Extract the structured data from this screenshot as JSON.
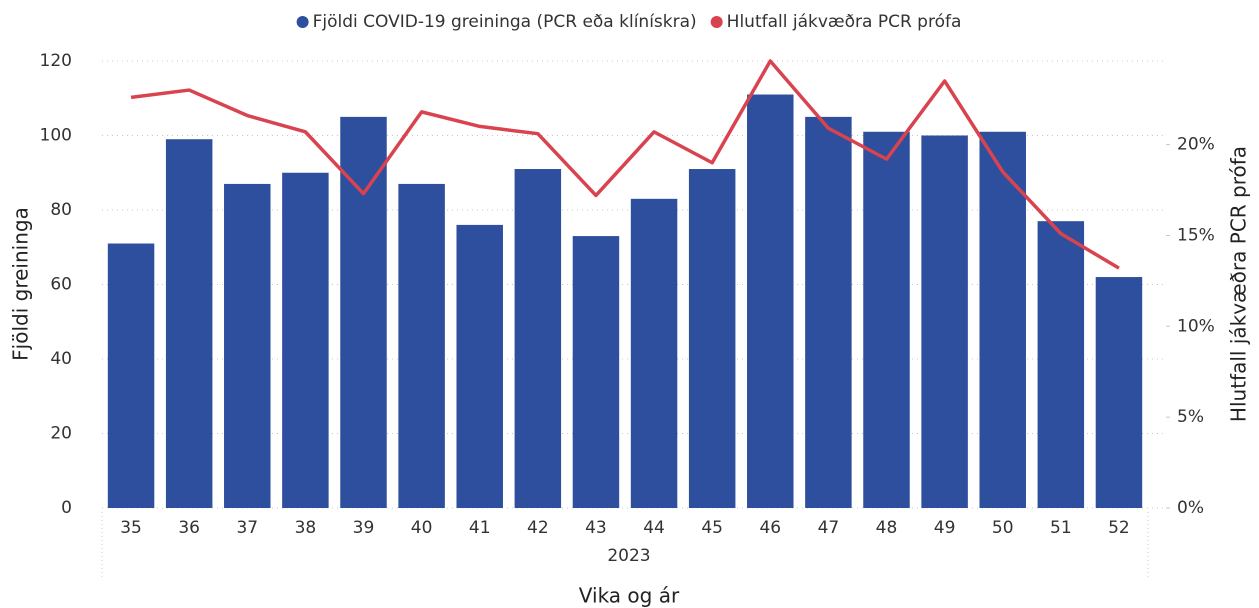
{
  "chart_data": {
    "type": "bar_line",
    "series": [
      {
        "name": "Fjöldi COVID-19 greininga (PCR eða klínískra)",
        "color": "#2e4f9e",
        "values": [
          71,
          99,
          87,
          90,
          105,
          87,
          76,
          91,
          73,
          83,
          91,
          111,
          105,
          101,
          100,
          101,
          77,
          62
        ]
      },
      {
        "name": "Hlutfall jákvæðra PCR prófa",
        "color": "#d9434f",
        "axis": "y2",
        "values": [
          22.6,
          23.0,
          21.6,
          20.7,
          17.3,
          21.8,
          21.0,
          20.6,
          17.2,
          20.7,
          19.0,
          24.6,
          20.9,
          19.2,
          23.5,
          18.5,
          15.1,
          13.2
        ]
      }
    ],
    "categories": [
      "35",
      "36",
      "37",
      "38",
      "39",
      "40",
      "41",
      "42",
      "43",
      "44",
      "45",
      "46",
      "47",
      "48",
      "49",
      "50",
      "51",
      "52"
    ],
    "x_group_label": "2023",
    "xlabel": "Vika og ár",
    "ylabel": "Fjöldi greininga",
    "y2label": "Hlutfall jákvæðra PCR prófa",
    "ylim": [
      0,
      120
    ],
    "yticks": [
      0,
      20,
      40,
      60,
      80,
      100,
      120
    ],
    "y2lim": [
      0,
      24.6
    ],
    "y2ticks": [
      {
        "value": 0,
        "label": "0%"
      },
      {
        "value": 5,
        "label": "5%"
      },
      {
        "value": 10,
        "label": "10%"
      },
      {
        "value": 15,
        "label": "15%"
      },
      {
        "value": 20,
        "label": "20%"
      }
    ],
    "grid": true,
    "legend": "top"
  }
}
